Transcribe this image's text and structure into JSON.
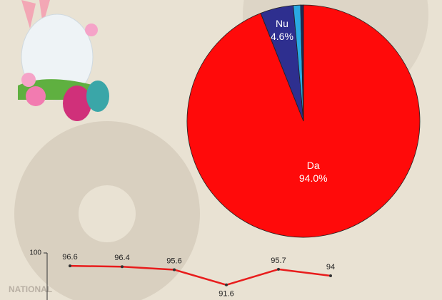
{
  "watermark": "NATIONAL",
  "chart_data": [
    {
      "type": "pie",
      "categories": [
        "Da",
        "Nu",
        null,
        null
      ],
      "values": [
        94.0,
        4.6,
        1.0,
        0.4
      ],
      "value_labels": [
        "94.0%",
        "4.6%",
        null,
        null
      ],
      "colors": [
        "#ff0a0a",
        "#2e2f8f",
        "#2aa9e3",
        "#1c2a5a"
      ]
    },
    {
      "type": "line",
      "values": [
        96.6,
        96.4,
        95.6,
        91.6,
        95.7,
        94.0
      ],
      "color": "#e81c1c",
      "ylim": [
        88,
        100
      ],
      "yticks": [
        100
      ]
    }
  ]
}
